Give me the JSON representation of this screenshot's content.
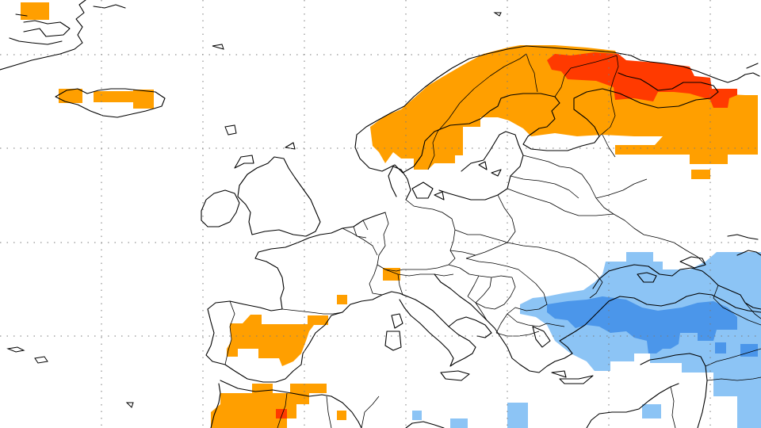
{
  "map": {
    "projection": "cylindrical",
    "region": "Europe",
    "gridlines": "dotted",
    "colors": {
      "warm_moderate": "#ff9f00",
      "warm_strong": "#ff3a00",
      "cool_light": "#8cc4f5",
      "cool_moderate": "#4b96ea",
      "coastline": "#000000",
      "background": "#ffffff"
    },
    "anomaly_regions": [
      {
        "id": "northern-scandinavia",
        "category": "warm_moderate"
      },
      {
        "id": "kola-peninsula-arctic-russia",
        "category": "warm_strong"
      },
      {
        "id": "iceland",
        "category": "warm_moderate"
      },
      {
        "id": "greenland-coast",
        "category": "warm_moderate"
      },
      {
        "id": "iberia",
        "category": "warm_moderate"
      },
      {
        "id": "northwest-africa",
        "category": "warm_moderate"
      },
      {
        "id": "alps",
        "category": "warm_moderate"
      },
      {
        "id": "black-sea-turkey",
        "category": "cool_moderate"
      },
      {
        "id": "eastern-mediterranean",
        "category": "cool_light"
      }
    ]
  }
}
